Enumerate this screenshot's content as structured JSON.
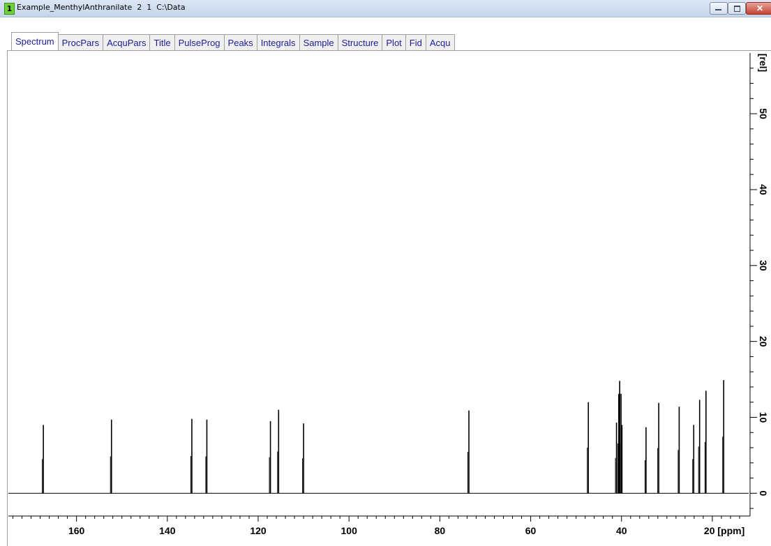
{
  "window": {
    "number": "1",
    "title": "Example_MenthylAnthranilate  2  1  C:\\Data"
  },
  "tabs": [
    {
      "label": "Spectrum",
      "active": true
    },
    {
      "label": "ProcPars",
      "active": false
    },
    {
      "label": "AcquPars",
      "active": false
    },
    {
      "label": "Title",
      "active": false
    },
    {
      "label": "PulseProg",
      "active": false
    },
    {
      "label": "Peaks",
      "active": false
    },
    {
      "label": "Integrals",
      "active": false
    },
    {
      "label": "Sample",
      "active": false
    },
    {
      "label": "Structure",
      "active": false
    },
    {
      "label": "Plot",
      "active": false
    },
    {
      "label": "Fid",
      "active": false
    },
    {
      "label": "Acqu",
      "active": false
    }
  ],
  "chart_data": {
    "type": "line",
    "x_axis": {
      "unit_label": "[ppm]",
      "range": [
        175,
        12
      ],
      "reversed": true,
      "major_ticks": [
        160,
        140,
        120,
        100,
        80,
        60,
        40,
        20
      ],
      "tick_labels": [
        "160",
        "140",
        "120",
        "100",
        "80",
        "60",
        "40",
        "20 [ppm]"
      ]
    },
    "y_axis": {
      "unit_label": "[rel]",
      "range": [
        -3,
        58
      ],
      "position": "right",
      "major_ticks": [
        0,
        10,
        20,
        30,
        40,
        50
      ],
      "tick_labels": [
        "0",
        "10",
        "20",
        "30",
        "40",
        "50"
      ]
    },
    "grid": false,
    "series": [
      {
        "peaks": [
          {
            "ppm": 167.3,
            "height": 9.0
          },
          {
            "ppm": 152.3,
            "height": 9.7
          },
          {
            "ppm": 134.6,
            "height": 9.8
          },
          {
            "ppm": 131.3,
            "height": 9.7
          },
          {
            "ppm": 117.3,
            "height": 9.5
          },
          {
            "ppm": 115.5,
            "height": 11.0
          },
          {
            "ppm": 110.0,
            "height": 9.2
          },
          {
            "ppm": 73.6,
            "height": 10.9
          },
          {
            "ppm": 47.3,
            "height": 12.0
          },
          {
            "ppm": 41.1,
            "height": 9.3
          },
          {
            "ppm": 40.6,
            "height": 13.1
          },
          {
            "ppm": 40.4,
            "height": 14.8
          },
          {
            "ppm": 40.1,
            "height": 13.1
          },
          {
            "ppm": 39.9,
            "height": 9.0
          },
          {
            "ppm": 34.6,
            "height": 8.7
          },
          {
            "ppm": 31.8,
            "height": 11.9
          },
          {
            "ppm": 27.3,
            "height": 11.4
          },
          {
            "ppm": 24.1,
            "height": 9.0
          },
          {
            "ppm": 22.8,
            "height": 12.3
          },
          {
            "ppm": 21.4,
            "height": 13.5
          },
          {
            "ppm": 17.5,
            "height": 14.9
          }
        ]
      }
    ]
  },
  "colors": {
    "trace": "#000000",
    "titlebar": "#c5d5ea",
    "tab_text": "#1c1c9a",
    "window_number_badge": "#6fd13a"
  }
}
